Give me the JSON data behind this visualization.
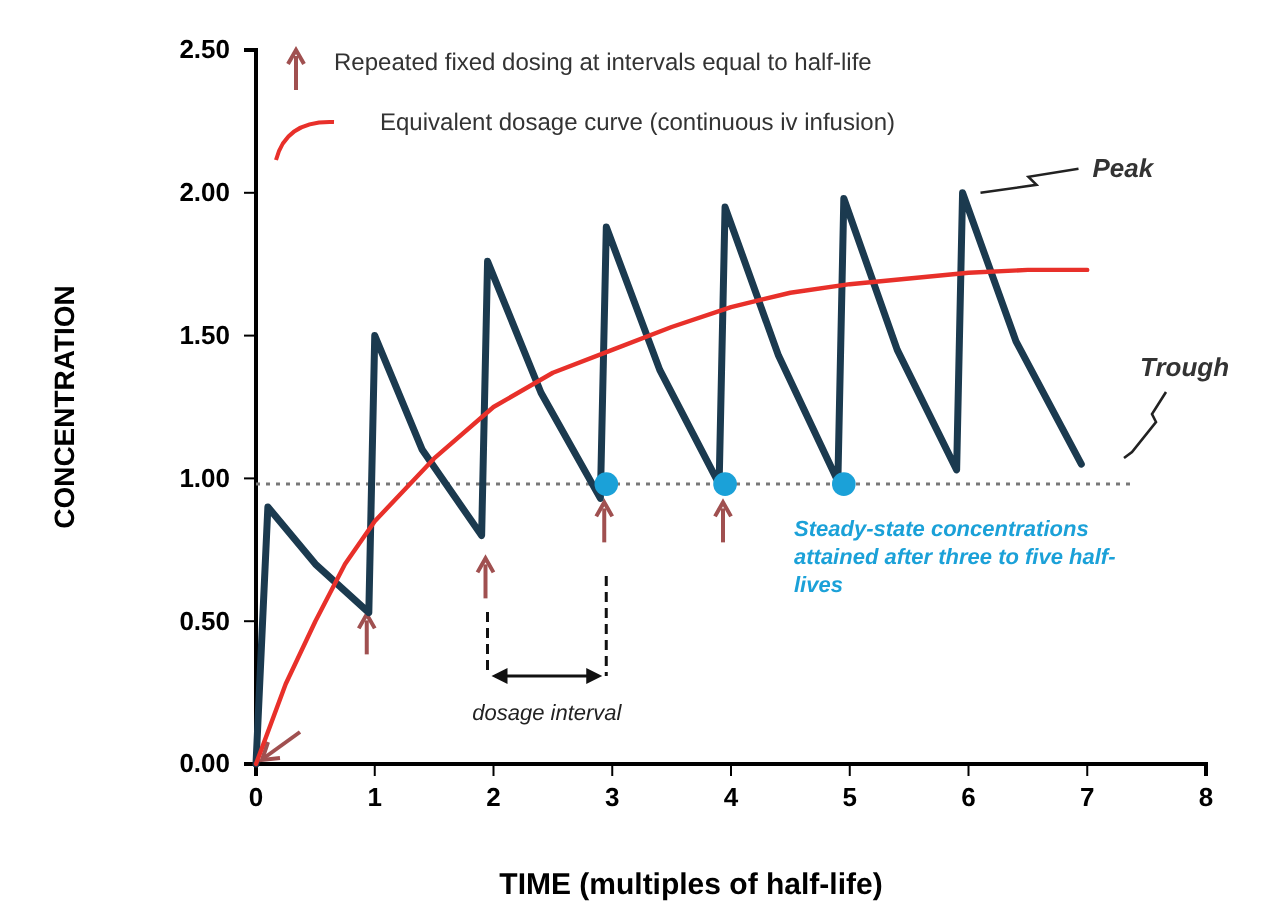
{
  "chart_data": {
    "type": "line",
    "xlabel": "TIME (multiples of half-life)",
    "ylabel": "CONCENTRATION",
    "xlim": [
      0,
      8
    ],
    "xticks": [
      0,
      1,
      2,
      3,
      4,
      5,
      6,
      7,
      8
    ],
    "ylim": [
      0,
      2.5
    ],
    "yticks": [
      {
        "value": 0,
        "label": "0.00"
      },
      {
        "value": 0.5,
        "label": "0.50"
      },
      {
        "value": 1,
        "label": "1.00"
      },
      {
        "value": 1.5,
        "label": "1.50"
      },
      {
        "value": 2,
        "label": "2.00"
      },
      {
        "value": 2.5,
        "label": "2.50"
      }
    ],
    "grid": false,
    "legend": "top left",
    "marker": "none",
    "line_style": "solid",
    "series": [
      {
        "color": "#1b3a4f",
        "x": [
          0,
          0.1,
          0.5,
          0.95,
          1.0,
          1.4,
          1.9,
          1.95,
          2.4,
          2.9,
          2.95,
          3.4,
          3.9,
          3.95,
          4.4,
          4.9,
          4.95,
          5.4,
          5.9,
          5.95,
          6.4,
          6.95
        ],
        "values": [
          0,
          0.9,
          0.7,
          0.53,
          1.5,
          1.1,
          0.8,
          1.76,
          1.3,
          0.93,
          1.88,
          1.38,
          0.98,
          1.95,
          1.43,
          0.99,
          1.98,
          1.45,
          1.03,
          2.0,
          1.48,
          1.05
        ]
      },
      {
        "name": "Equivalent dosage curve (continuous iv infusion)",
        "color": "#e8302a",
        "x": [
          0,
          0.25,
          0.5,
          0.75,
          1,
          1.5,
          2,
          2.5,
          3,
          3.5,
          4,
          4.5,
          5,
          5.5,
          6,
          6.5,
          7
        ],
        "values": [
          0,
          0.28,
          0.5,
          0.7,
          0.85,
          1.07,
          1.25,
          1.37,
          1.45,
          1.53,
          1.6,
          1.65,
          1.68,
          1.7,
          1.72,
          1.73,
          1.73
        ]
      },
      {
        "type": "scatter",
        "marker": "circle",
        "color": "#1ba1d8",
        "x": [
          2.95,
          3.95,
          4.95
        ],
        "values": [
          0.98,
          0.98,
          0.98
        ]
      }
    ],
    "ref_lines": [
      {
        "axis": "y",
        "value": 0.98,
        "color": "#777777",
        "line_style": "dotted"
      }
    ],
    "annotations": [
      "Repeated fixed dosing at intervals equal to half-life",
      {
        "text": "Peak",
        "x": 6,
        "y": 2.0
      },
      "Trough",
      "Steady-state concentrations attained after three to five half- lives",
      "dosage interval"
    ]
  }
}
